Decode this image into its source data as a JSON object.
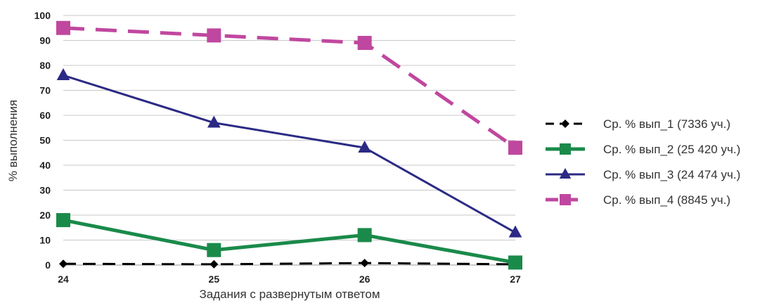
{
  "chart_data": {
    "type": "line",
    "categories": [
      "24",
      "25",
      "26",
      "27"
    ],
    "ylim": [
      0,
      100
    ],
    "yticks": [
      0,
      10,
      20,
      30,
      40,
      50,
      60,
      70,
      80,
      90,
      100
    ],
    "xlabel": "Задания с развернутым ответом",
    "ylabel": "% выполнения",
    "grid": "horizontal",
    "legend": "right",
    "series": [
      {
        "name": "Ср. % вып_1 (7336 уч.)",
        "values": [
          0.5,
          0.3,
          0.8,
          0.3
        ],
        "color": "#000000",
        "dash": "dashed",
        "marker": "diamond"
      },
      {
        "name": "Ср. % вып_2 (25 420 уч.)",
        "values": [
          18,
          6,
          12,
          1
        ],
        "color": "#1a8a4a",
        "dash": "solid",
        "marker": "square"
      },
      {
        "name": "Ср. % вып_3 (24 474 уч.)",
        "values": [
          76,
          57,
          47,
          13
        ],
        "color": "#2b2a85",
        "dash": "solid",
        "marker": "triangle"
      },
      {
        "name": "Ср. % вып_4 (8845 уч.)",
        "values": [
          95,
          92,
          89,
          47
        ],
        "color": "#c0479f",
        "dash": "dashed",
        "marker": "square"
      }
    ]
  }
}
